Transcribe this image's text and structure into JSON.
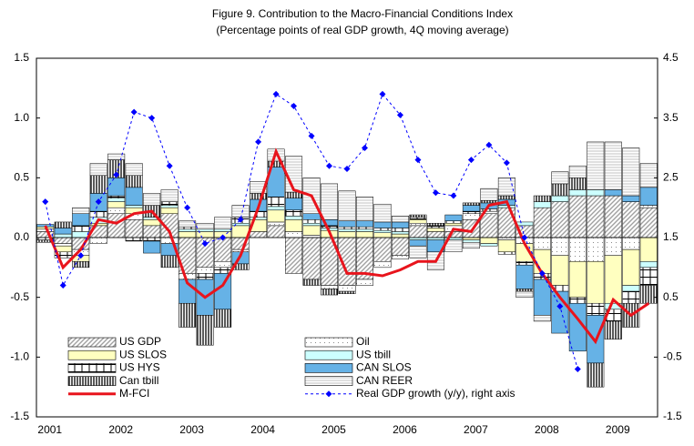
{
  "chart_data": {
    "type": "bar",
    "title": "Figure 9. Contribution to the Macro-Financial Conditions Index",
    "subtitle": "(Percentage points of real GDP growth, 4Q moving average)",
    "categories": [
      "2001",
      null,
      null,
      null,
      "2002",
      null,
      null,
      null,
      "2003",
      null,
      null,
      null,
      "2004",
      null,
      null,
      null,
      "2005",
      null,
      null,
      null,
      "2006",
      null,
      null,
      null,
      "2007",
      null,
      null,
      null,
      "2008",
      null,
      null,
      null,
      "2009",
      null,
      null
    ],
    "ylim": [
      -1.5,
      1.5
    ],
    "yticks": [
      -1.5,
      {
        "value": -1,
        "label": "-1.0"
      },
      -0.5,
      {
        "value": 0,
        "label": "0.0"
      },
      0.5,
      {
        "value": 1,
        "label": "1.0"
      },
      1.5
    ],
    "y2lim": [
      -1.5,
      4.5
    ],
    "y2ticks": [
      -1.5,
      -0.5,
      0.5,
      1.5,
      2.5,
      3.5,
      4.5
    ],
    "series": [
      {
        "name": "US GDP",
        "color": "#a0a0a0",
        "pattern": "diagonal",
        "values": [
          0.05,
          -0.05,
          -0.1,
          0.1,
          0.2,
          0.15,
          0.1,
          0.2,
          -0.3,
          -0.25,
          -0.2,
          -0.1,
          0.05,
          0.1,
          -0.3,
          -0.35,
          -0.4,
          -0.4,
          -0.35,
          -0.2,
          -0.15,
          0.1,
          0.05,
          0.05,
          0.15,
          0.2,
          0.25,
          0.1,
          0.25,
          0.3,
          0.35,
          0.35,
          0.35,
          0.3,
          0.25
        ]
      },
      {
        "name": "Oil",
        "color": "#606060",
        "pattern": "dots",
        "values": [
          0.02,
          -0.02,
          -0.05,
          -0.05,
          0.05,
          0.05,
          0,
          -0.05,
          -0.05,
          -0.05,
          -0.05,
          -0.02,
          0,
          0.03,
          0.05,
          0.02,
          -0.03,
          -0.05,
          -0.05,
          -0.05,
          -0.03,
          0.02,
          0,
          0.05,
          0.05,
          0.02,
          -0.02,
          -0.05,
          -0.1,
          -0.15,
          -0.2,
          -0.2,
          -0.15,
          -0.1,
          0.02
        ]
      },
      {
        "name": "US SLOS",
        "color": "#ffffc0",
        "pattern": "solid",
        "values": [
          0.02,
          -0.05,
          -0.05,
          0.02,
          0.05,
          0.05,
          0.05,
          0.05,
          0.05,
          0.05,
          0.05,
          0.1,
          0.1,
          0.1,
          0.1,
          0.08,
          0.06,
          0.05,
          0.05,
          0.04,
          0.03,
          0.03,
          0.03,
          0.02,
          -0.02,
          -0.05,
          -0.1,
          -0.15,
          -0.2,
          -0.25,
          -0.3,
          -0.35,
          -0.4,
          -0.3,
          -0.2
        ]
      },
      {
        "name": "US tbill",
        "color": "#ccffff",
        "pattern": "solid",
        "values": [
          0,
          0.03,
          0.05,
          0.05,
          0.03,
          0.02,
          0.02,
          0.02,
          0.02,
          0.02,
          0.02,
          0.02,
          0.02,
          0.03,
          0.03,
          0.02,
          0.02,
          0.02,
          0.02,
          0.02,
          0.02,
          -0.02,
          -0.02,
          -0.02,
          -0.02,
          -0.02,
          0.02,
          0.03,
          0.05,
          0.05,
          0.05,
          0.05,
          -0.05,
          -0.05,
          -0.05
        ]
      },
      {
        "name": "US HYS",
        "color": "#000000",
        "pattern": "grid",
        "values": [
          -0.02,
          -0.05,
          0.05,
          0.05,
          0.02,
          -0.03,
          -0.03,
          0.03,
          0.02,
          -0.05,
          -0.05,
          0.05,
          0.05,
          0.08,
          0.05,
          0.03,
          0.02,
          0.02,
          0.02,
          0.02,
          0.03,
          0.02,
          0.02,
          0.02,
          0.02,
          0.02,
          -0.02,
          -0.03,
          -0.05,
          -0.05,
          -0.05,
          -0.1,
          -0.1,
          -0.1,
          -0.15
        ]
      },
      {
        "name": "CAN SLOS",
        "color": "#66b2e6",
        "pattern": "solid",
        "values": [
          0.02,
          0.05,
          0.1,
          0.15,
          0.15,
          0.15,
          -0.1,
          -0.1,
          -0.2,
          -0.3,
          -0.3,
          -0.1,
          0.1,
          0.25,
          0.1,
          0.05,
          0.05,
          0.05,
          0.05,
          0.05,
          0.05,
          -0.05,
          -0.1,
          0.05,
          0.05,
          0.05,
          0.05,
          -0.2,
          -0.3,
          -0.35,
          -0.4,
          -0.4,
          0.05,
          0.05,
          0.15
        ]
      },
      {
        "name": "Can tbill",
        "color": "#000000",
        "pattern": "vertical",
        "values": [
          -0.02,
          0.05,
          -0.05,
          0.15,
          0.15,
          0.1,
          0.1,
          -0.1,
          -0.2,
          -0.25,
          -0.15,
          -0.05,
          0.05,
          0.05,
          0.05,
          -0.05,
          -0.05,
          -0.02,
          0,
          0,
          0,
          0.02,
          0.02,
          0,
          0.02,
          0.02,
          0.03,
          -0.02,
          0.05,
          0.1,
          0.1,
          -0.2,
          -0.15,
          -0.2,
          -0.15
        ]
      },
      {
        "name": "CAN REER",
        "color": "#b0b0b0",
        "pattern": "horizontal",
        "values": [
          0,
          0,
          0.05,
          0.1,
          0.05,
          0.1,
          0.1,
          0.1,
          0.05,
          0.05,
          0.1,
          0.1,
          0.1,
          0.1,
          0.3,
          0.3,
          0.3,
          0.25,
          0.2,
          0.15,
          0.05,
          -0.1,
          -0.15,
          -0.1,
          -0.05,
          0.1,
          0.15,
          -0.05,
          -0.05,
          0.1,
          0.1,
          0.4,
          0.4,
          0.4,
          0.2
        ]
      },
      {
        "name": "M-FCI",
        "color": "#e8141c",
        "type": "line",
        "values": [
          0.1,
          -0.25,
          -0.1,
          0.15,
          0.12,
          0.2,
          0.22,
          0.05,
          -0.38,
          -0.5,
          -0.4,
          -0.15,
          0.25,
          0.72,
          0.4,
          0.35,
          0.05,
          -0.3,
          -0.3,
          -0.32,
          -0.27,
          -0.2,
          -0.2,
          0.07,
          0.05,
          0.27,
          0.3,
          -0.05,
          -0.3,
          -0.5,
          -0.68,
          -0.87,
          -0.52,
          -0.65,
          -0.55
        ]
      },
      {
        "name": "Real GDP growth (y/y), right axis",
        "color": "#0000ff",
        "type": "line",
        "axis": "y2",
        "values": [
          2.1,
          0.7,
          1.2,
          2.1,
          2.55,
          3.6,
          3.5,
          2.7,
          2.0,
          1.4,
          1.5,
          1.8,
          3.1,
          3.9,
          3.7,
          3.2,
          2.7,
          2.65,
          3.0,
          3.9,
          3.55,
          2.8,
          2.25,
          2.2,
          2.8,
          3.05,
          2.75,
          1.5,
          0.9,
          0.35,
          -0.7,
          null,
          null,
          null,
          null
        ]
      }
    ]
  }
}
